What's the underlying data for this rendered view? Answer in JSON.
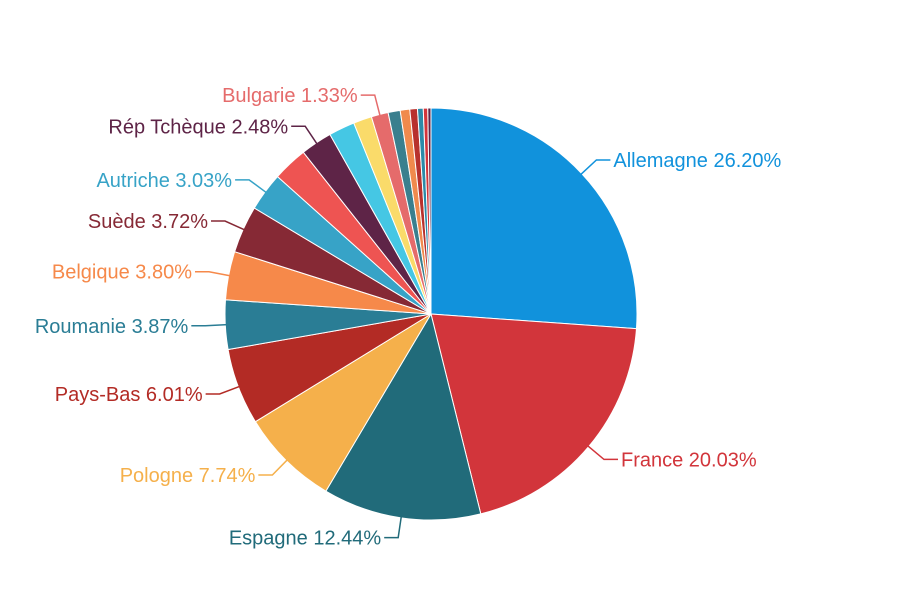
{
  "chart_data": {
    "type": "pie",
    "title": "",
    "start_angle_deg": 0,
    "direction": "clockwise",
    "slices": [
      {
        "label": "Allemagne",
        "pct_text": "26.20%",
        "value": 26.2,
        "color": "#1192dc",
        "show_label": true
      },
      {
        "label": "France",
        "pct_text": "20.03%",
        "value": 20.03,
        "color": "#d2353b",
        "show_label": true
      },
      {
        "label": "Espagne",
        "pct_text": "12.44%",
        "value": 12.44,
        "color": "#216b7a",
        "show_label": true
      },
      {
        "label": "Pologne",
        "pct_text": "7.74%",
        "value": 7.74,
        "color": "#f5b04b",
        "show_label": true
      },
      {
        "label": "Pays-Bas",
        "pct_text": "6.01%",
        "value": 6.01,
        "color": "#b32b25",
        "show_label": true
      },
      {
        "label": "Roumanie",
        "pct_text": "3.87%",
        "value": 3.87,
        "color": "#2a7d95",
        "show_label": true
      },
      {
        "label": "Belgique",
        "pct_text": "3.80%",
        "value": 3.8,
        "color": "#f6894a",
        "show_label": true
      },
      {
        "label": "Suède",
        "pct_text": "3.72%",
        "value": 3.72,
        "color": "#862935",
        "show_label": true
      },
      {
        "label": "Autriche",
        "pct_text": "3.03%",
        "value": 3.03,
        "color": "#37a3c7",
        "show_label": true
      },
      {
        "label": "",
        "pct_text": "",
        "value": 2.75,
        "color": "#ee5452",
        "show_label": false
      },
      {
        "label": "Rép Tchèque",
        "pct_text": "2.48%",
        "value": 2.48,
        "color": "#5e2447",
        "show_label": true
      },
      {
        "label": "",
        "pct_text": "",
        "value": 2.05,
        "color": "#45c7e4",
        "show_label": false
      },
      {
        "label": "",
        "pct_text": "",
        "value": 1.45,
        "color": "#fadb6a",
        "show_label": false
      },
      {
        "label": "Bulgarie",
        "pct_text": "1.33%",
        "value": 1.33,
        "color": "#e56b6b",
        "show_label": true
      },
      {
        "label": "",
        "pct_text": "",
        "value": 0.95,
        "color": "#3a7f8e",
        "show_label": false
      },
      {
        "label": "",
        "pct_text": "",
        "value": 0.75,
        "color": "#f08a4d",
        "show_label": false
      },
      {
        "label": "",
        "pct_text": "",
        "value": 0.6,
        "color": "#b8312d",
        "show_label": false
      },
      {
        "label": "",
        "pct_text": "",
        "value": 0.45,
        "color": "#2c8aa8",
        "show_label": false
      },
      {
        "label": "",
        "pct_text": "",
        "value": 0.35,
        "color": "#d2353b",
        "show_label": false
      },
      {
        "label": "",
        "pct_text": "",
        "value": 0.25,
        "color": "#5e2447",
        "show_label": false
      }
    ]
  }
}
